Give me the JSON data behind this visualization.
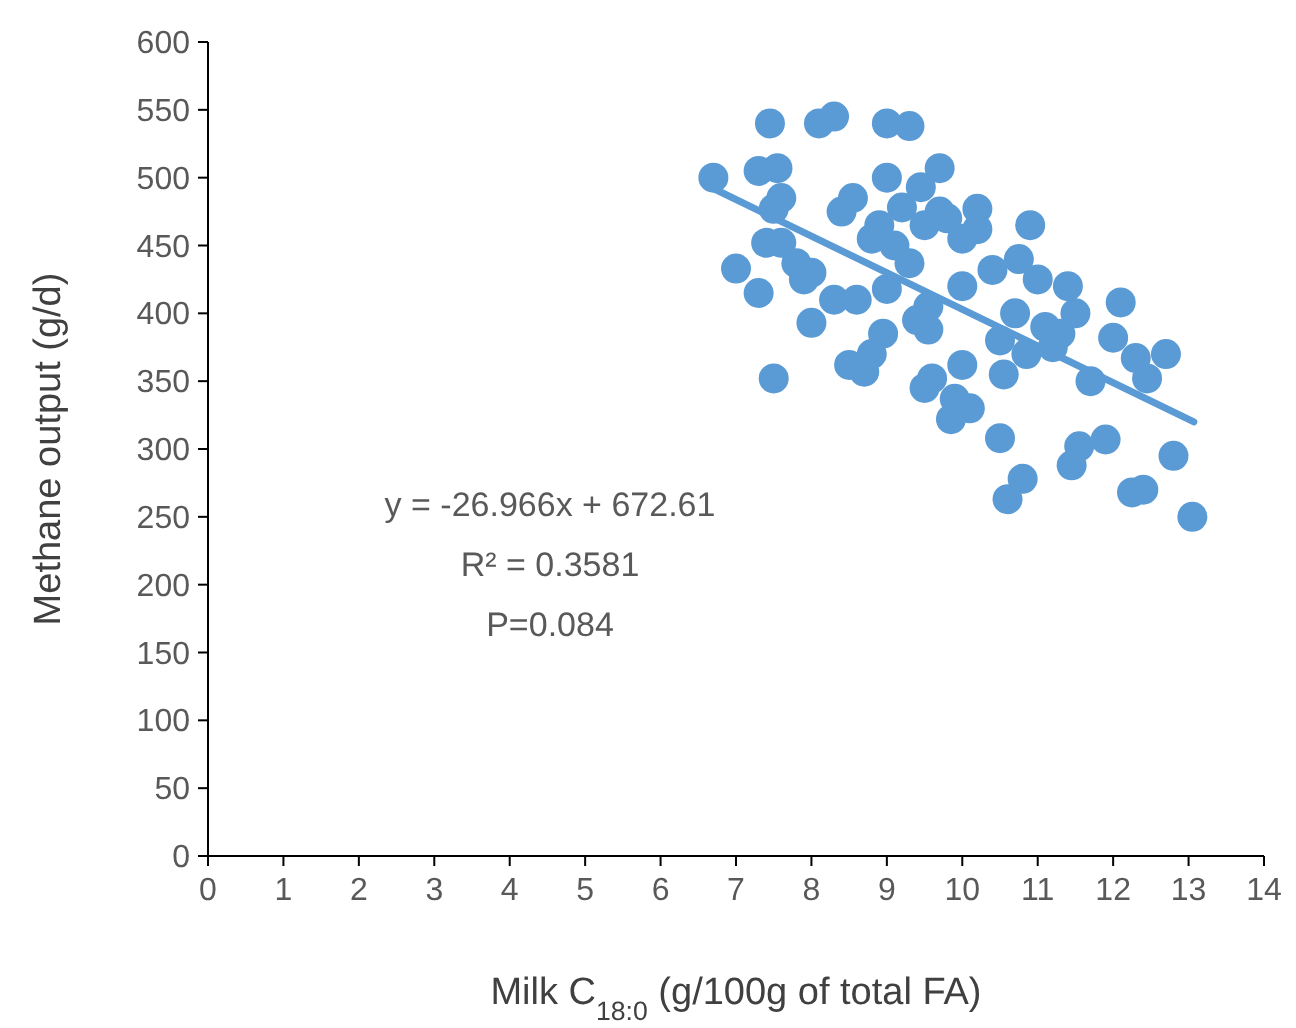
{
  "chart_data": {
    "type": "scatter",
    "xlabel": "Milk C$_{18:0}$ (g/100g of total FA)",
    "ylabel": "Methane output (g/d)",
    "xlim": [
      0,
      14
    ],
    "xticks": [
      0,
      1,
      2,
      3,
      4,
      5,
      6,
      7,
      8,
      9,
      10,
      11,
      12,
      13,
      14
    ],
    "ylim": [
      0,
      600
    ],
    "yticks": [
      0,
      50,
      100,
      150,
      200,
      250,
      300,
      350,
      400,
      450,
      500,
      550,
      600
    ],
    "grid": false,
    "annotations": [
      "y = -26.966x + 672.61",
      "R² = 0.3581",
      "P=0.084"
    ],
    "series": [
      {
        "color": "#5b9bd5",
        "marker": "circle",
        "x": [
          6.7,
          7.0,
          7.3,
          7.3,
          7.4,
          7.45,
          7.5,
          7.5,
          7.55,
          7.6,
          7.6,
          7.8,
          7.9,
          8.0,
          8.0,
          8.1,
          8.3,
          8.3,
          8.4,
          8.5,
          8.55,
          8.6,
          8.7,
          8.8,
          8.8,
          8.9,
          8.95,
          9.0,
          9.0,
          9.0,
          9.1,
          9.2,
          9.3,
          9.3,
          9.4,
          9.45,
          9.5,
          9.5,
          9.55,
          9.55,
          9.6,
          9.7,
          9.7,
          9.8,
          9.85,
          9.9,
          10.0,
          10.0,
          10.0,
          10.1,
          10.2,
          10.2,
          10.4,
          10.5,
          10.5,
          10.55,
          10.6,
          10.7,
          10.75,
          10.8,
          10.85,
          10.9,
          11.0,
          11.1,
          11.2,
          11.3,
          11.4,
          11.45,
          11.5,
          11.55,
          11.7,
          11.9,
          12.0,
          12.1,
          12.25,
          12.3,
          12.4,
          12.45,
          12.7,
          12.8,
          13.05
        ],
        "values": [
          500,
          433,
          415,
          505,
          452,
          540,
          477,
          352,
          507,
          452,
          485,
          437,
          425,
          430,
          393,
          540,
          545,
          410,
          475,
          362,
          485,
          410,
          357,
          455,
          370,
          465,
          385,
          540,
          500,
          418,
          450,
          478,
          437,
          538,
          395,
          493,
          465,
          345,
          405,
          388,
          352,
          507,
          475,
          470,
          322,
          337,
          420,
          455,
          362,
          330,
          477,
          462,
          432,
          308,
          380,
          355,
          263,
          400,
          440,
          278,
          370,
          465,
          425,
          390,
          375,
          385,
          420,
          288,
          400,
          302,
          350,
          307,
          382,
          408,
          268,
          367,
          270,
          352,
          370,
          295,
          250
        ]
      },
      {
        "type": "line",
        "color": "#5b9bd5",
        "line_style": "solid",
        "marker": "none",
        "x": [
          6.7,
          13.07
        ],
        "values": [
          492,
          320
        ]
      }
    ]
  }
}
